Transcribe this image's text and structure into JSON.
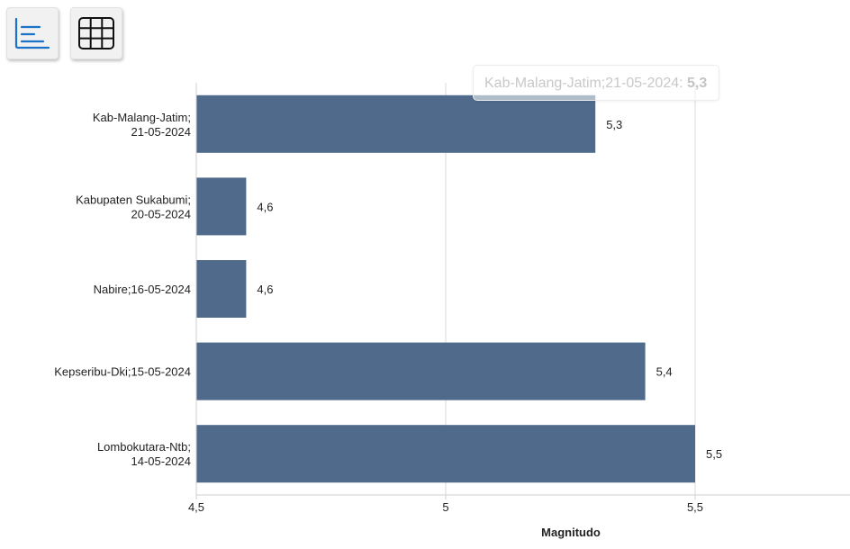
{
  "toolbar": {
    "chart_button_icon": "bar-chart-icon",
    "table_button_icon": "table-grid-icon",
    "accent": "#1a73c8"
  },
  "tooltip": {
    "label": "Kab-Malang-Jatim;21-05-2024: ",
    "value": "5,3"
  },
  "chart_data": {
    "type": "bar",
    "orientation": "horizontal",
    "categories": [
      [
        "Kab-Malang-Jatim;",
        "21-05-2024"
      ],
      [
        "Kabupaten Sukabumi;",
        "20-05-2024"
      ],
      [
        "Nabire;16-05-2024"
      ],
      [
        "Kepseribu-Dki;15-05-2024"
      ],
      [
        "Lombokutara-Ntb;",
        "14-05-2024"
      ]
    ],
    "values": [
      5.3,
      4.6,
      4.6,
      5.4,
      5.5
    ],
    "value_labels": [
      "5,3",
      "4,6",
      "4,6",
      "5,4",
      "5,5"
    ],
    "xlabel": "Magnitudo",
    "xlim": [
      4.5,
      5.5
    ],
    "xticks": [
      4.5,
      5,
      5.5
    ],
    "xtick_labels": [
      "4,5",
      "5",
      "5,5"
    ],
    "grid": true,
    "bar_color": "#4f6a8b"
  }
}
